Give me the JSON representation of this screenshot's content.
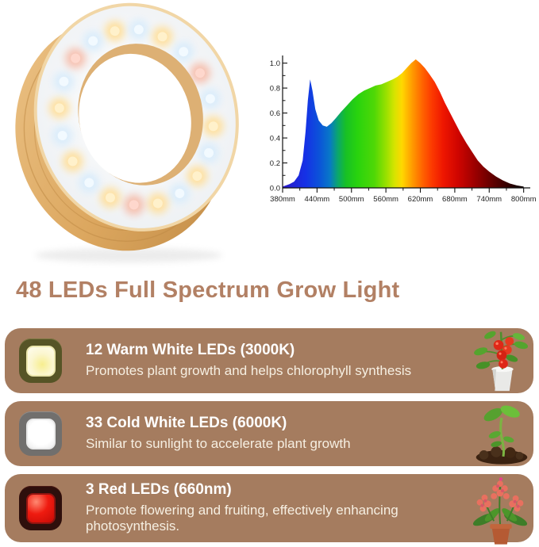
{
  "title": {
    "text": "48 LEDs Full Spectrum Grow Light",
    "color": "#b28064"
  },
  "hero": {
    "name": "wooden-ring-grow-light",
    "wood_light": "#ecc387",
    "wood_mid": "#dca75f",
    "wood_dark": "#c08a45",
    "diffuser": "#eef1f4",
    "led_glow_warm": "#ffdf9b",
    "led_glow_cool": "#d9ecfb",
    "led_glow_red": "#f6beac"
  },
  "chart_data": {
    "type": "area",
    "title": "",
    "xlabel": "",
    "ylabel": "",
    "x_ticks": [
      {
        "value": 380,
        "label": "380mm"
      },
      {
        "value": 440,
        "label": "440mm"
      },
      {
        "value": 500,
        "label": "500mm"
      },
      {
        "value": 560,
        "label": "560mm"
      },
      {
        "value": 620,
        "label": "620mm"
      },
      {
        "value": 680,
        "label": "680mm"
      },
      {
        "value": 740,
        "label": "740mm"
      },
      {
        "value": 800,
        "label": "800mm"
      }
    ],
    "y_ticks": [
      {
        "value": 0.0,
        "label": "0.0"
      },
      {
        "value": 0.2,
        "label": "0.2"
      },
      {
        "value": 0.4,
        "label": "0.4"
      },
      {
        "value": 0.6,
        "label": "0.6"
      },
      {
        "value": 0.8,
        "label": "0.8"
      },
      {
        "value": 1.0,
        "label": "1.0"
      }
    ],
    "y_minor_ticks": [
      0.1,
      0.3,
      0.5,
      0.7,
      0.9
    ],
    "x_minor_step": 30,
    "xlim": [
      380,
      815
    ],
    "ylim": [
      0,
      1.08
    ],
    "grid": false,
    "legend": false,
    "axis_color": "#111111",
    "label_color": "#222222",
    "points": [
      [
        380,
        0.01
      ],
      [
        392,
        0.03
      ],
      [
        400,
        0.05
      ],
      [
        408,
        0.1
      ],
      [
        415,
        0.22
      ],
      [
        420,
        0.45
      ],
      [
        424,
        0.7
      ],
      [
        428,
        0.87
      ],
      [
        432,
        0.78
      ],
      [
        437,
        0.63
      ],
      [
        443,
        0.54
      ],
      [
        450,
        0.5
      ],
      [
        457,
        0.49
      ],
      [
        465,
        0.52
      ],
      [
        473,
        0.56
      ],
      [
        482,
        0.61
      ],
      [
        492,
        0.66
      ],
      [
        502,
        0.71
      ],
      [
        512,
        0.75
      ],
      [
        522,
        0.78
      ],
      [
        532,
        0.8
      ],
      [
        542,
        0.82
      ],
      [
        552,
        0.83
      ],
      [
        562,
        0.85
      ],
      [
        572,
        0.87
      ],
      [
        580,
        0.89
      ],
      [
        588,
        0.92
      ],
      [
        596,
        0.96
      ],
      [
        604,
        1.0
      ],
      [
        612,
        1.03
      ],
      [
        620,
        1.0
      ],
      [
        628,
        0.96
      ],
      [
        636,
        0.91
      ],
      [
        645,
        0.85
      ],
      [
        654,
        0.77
      ],
      [
        663,
        0.68
      ],
      [
        672,
        0.6
      ],
      [
        681,
        0.52
      ],
      [
        690,
        0.44
      ],
      [
        700,
        0.36
      ],
      [
        710,
        0.29
      ],
      [
        720,
        0.22
      ],
      [
        730,
        0.17
      ],
      [
        740,
        0.13
      ],
      [
        752,
        0.09
      ],
      [
        764,
        0.06
      ],
      [
        776,
        0.035
      ],
      [
        788,
        0.02
      ],
      [
        800,
        0.01
      ]
    ],
    "spectrum_stops": [
      [
        380,
        "#2a18c8"
      ],
      [
        420,
        "#1531e6"
      ],
      [
        445,
        "#0b55d8"
      ],
      [
        462,
        "#0877c8"
      ],
      [
        476,
        "#0aa66e"
      ],
      [
        490,
        "#18c026"
      ],
      [
        510,
        "#28d30e"
      ],
      [
        540,
        "#4fd806"
      ],
      [
        560,
        "#97e000"
      ],
      [
        575,
        "#d6e400"
      ],
      [
        588,
        "#ffd800"
      ],
      [
        600,
        "#ffae00"
      ],
      [
        612,
        "#ff8800"
      ],
      [
        625,
        "#ff6000"
      ],
      [
        640,
        "#fc3a00"
      ],
      [
        660,
        "#ee1600"
      ],
      [
        685,
        "#d00500"
      ],
      [
        715,
        "#9c0000"
      ],
      [
        745,
        "#630000"
      ],
      [
        775,
        "#2e0000"
      ],
      [
        800,
        "#070000"
      ]
    ]
  },
  "features": {
    "card_bg": "#a57c5f",
    "heading_color": "#ffffff",
    "body_color": "#f6efe2",
    "cards": [
      {
        "heading": "12 Warm White LEDs (3000K)",
        "body": "Promotes plant growth and helps chlorophyll synthesis",
        "led_icon": "warm-white-led-icon",
        "led_colors": {
          "outer": "#565426",
          "ring": "#ece7ae",
          "face": "#fbf6cf",
          "glow": "#f7ee8e"
        },
        "plant_image": "tomato-plant"
      },
      {
        "heading": "33 Cold White LEDs (6000K)",
        "body": "Similar to sunlight to accelerate plant growth",
        "led_icon": "cold-white-led-icon",
        "led_colors": {
          "outer": "#716f6d",
          "ring": "#e9e9e9",
          "face": "#ffffff",
          "glow": "#ececec"
        },
        "plant_image": "seedling"
      },
      {
        "heading": "3 Red LEDs (660nm)",
        "body": "Promote flowering and fruiting, effectively enhancing photosynthesis.",
        "led_icon": "red-led-icon",
        "led_colors": {
          "outer": "#2e0f0c",
          "ring": "#8f1410",
          "face": "#ef1b10",
          "glow": "#ff8a72"
        },
        "plant_image": "flowering-plant"
      }
    ]
  }
}
